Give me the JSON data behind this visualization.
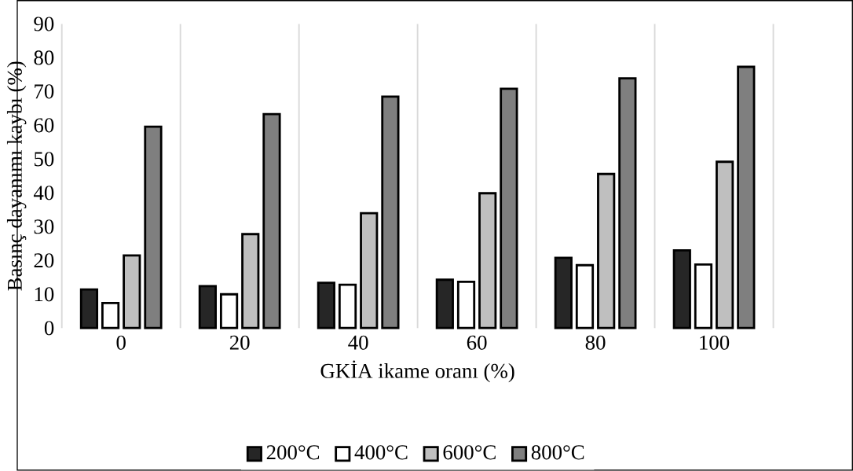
{
  "chart_data": {
    "type": "bar",
    "xlabel": "GKİA ikame oranı (%)",
    "ylabel": "Basınç dayanımı kaybı (%)",
    "categories": [
      "0",
      "20",
      "40",
      "60",
      "80",
      "100"
    ],
    "series": [
      {
        "name": "200°C",
        "color": "#262626",
        "values": [
          11.4,
          12.4,
          13.4,
          14.3,
          20.8,
          23.0
        ]
      },
      {
        "name": "400°C",
        "color": "#ffffff",
        "values": [
          7.4,
          10.0,
          12.8,
          13.7,
          18.6,
          18.8
        ]
      },
      {
        "name": "600°C",
        "color": "#bfbfbf",
        "values": [
          21.5,
          27.8,
          34.0,
          39.9,
          45.6,
          49.2
        ]
      },
      {
        "name": "800°C",
        "color": "#7f7f7f",
        "values": [
          59.6,
          63.3,
          68.5,
          70.8,
          73.9,
          77.3
        ]
      }
    ],
    "ylim": [
      0,
      90
    ],
    "yticks": [
      0,
      10,
      20,
      30,
      40,
      50,
      60,
      70,
      80,
      90
    ],
    "grid": "x",
    "legend": "bottom"
  }
}
